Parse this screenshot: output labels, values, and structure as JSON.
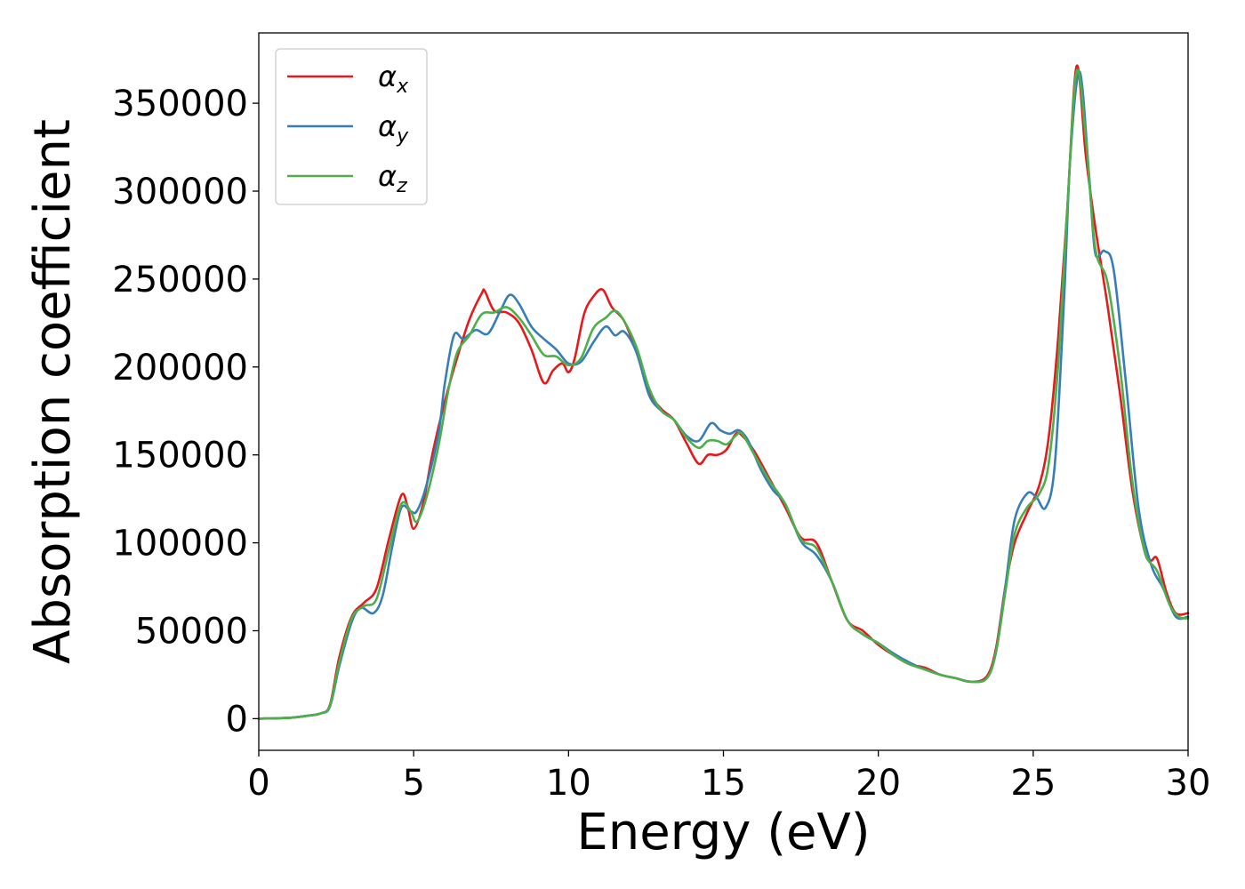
{
  "chart_data": {
    "type": "line",
    "title": "",
    "xlabel": "Energy (eV)",
    "ylabel": "Absorption coefficient",
    "xlim": [
      0,
      30
    ],
    "ylim": [
      -18000,
      390000
    ],
    "xticks": [
      0,
      5,
      10,
      15,
      20,
      25,
      30
    ],
    "xtick_labels": [
      "0",
      "5",
      "10",
      "15",
      "20",
      "25",
      "30"
    ],
    "yticks": [
      0,
      50000,
      100000,
      150000,
      200000,
      250000,
      300000,
      350000
    ],
    "ytick_labels": [
      "0",
      "50000",
      "100000",
      "150000",
      "200000",
      "250000",
      "300000",
      "350000"
    ],
    "grid": false,
    "legend_position": "top-left",
    "series": [
      {
        "name": "α",
        "subscript": "x",
        "color": "#e41a1c",
        "x": [
          0,
          1,
          1.5,
          2,
          2.3,
          2.6,
          3.0,
          3.4,
          3.8,
          4.2,
          4.6,
          4.8,
          5.0,
          5.3,
          5.6,
          6.0,
          6.4,
          6.8,
          7.2,
          7.3,
          7.6,
          8.0,
          8.4,
          8.8,
          9.2,
          9.5,
          9.8,
          10.0,
          10.2,
          10.5,
          10.8,
          11.1,
          11.4,
          11.8,
          12.2,
          12.6,
          13.0,
          13.4,
          13.8,
          14.2,
          14.5,
          14.8,
          15.1,
          15.4,
          15.6,
          16.0,
          16.5,
          17.0,
          17.5,
          18.0,
          18.5,
          19.0,
          19.5,
          20.0,
          20.5,
          21.0,
          21.5,
          22.0,
          22.5,
          23.0,
          23.5,
          23.8,
          24.1,
          24.4,
          24.8,
          25.2,
          25.5,
          25.8,
          26.1,
          26.4,
          26.7,
          27.0,
          27.4,
          27.8,
          28.2,
          28.6,
          28.8,
          29.0,
          29.3,
          29.6,
          30.0
        ],
        "y": [
          0,
          500,
          1500,
          3000,
          8000,
          35000,
          58000,
          66000,
          74000,
          102000,
          127000,
          121000,
          108000,
          122000,
          150000,
          180000,
          205000,
          227000,
          242000,
          243000,
          232000,
          231000,
          225000,
          210000,
          191000,
          198000,
          202000,
          197000,
          205000,
          230000,
          240000,
          244000,
          234000,
          226000,
          208000,
          186000,
          176000,
          170000,
          157000,
          145000,
          150000,
          150000,
          153000,
          162000,
          161000,
          152000,
          136000,
          120000,
          103000,
          100000,
          78000,
          56000,
          50000,
          42000,
          36000,
          31000,
          29000,
          25000,
          23000,
          21000,
          24000,
          40000,
          75000,
          100000,
          117000,
          133000,
          160000,
          215000,
          290000,
          371000,
          320000,
          280000,
          235000,
          185000,
          130000,
          95000,
          90000,
          91000,
          72000,
          60000,
          60000
        ]
      },
      {
        "name": "α",
        "subscript": "y",
        "color": "#377eb8",
        "x": [
          0,
          1,
          1.5,
          2,
          2.3,
          2.6,
          3.0,
          3.3,
          3.7,
          4.0,
          4.3,
          4.6,
          4.9,
          5.1,
          5.4,
          5.8,
          6.0,
          6.3,
          6.6,
          7.0,
          7.4,
          7.8,
          8.1,
          8.4,
          8.8,
          9.2,
          9.6,
          10.0,
          10.4,
          10.8,
          11.2,
          11.5,
          11.8,
          12.2,
          12.6,
          13.0,
          13.4,
          13.8,
          14.2,
          14.6,
          14.9,
          15.2,
          15.5,
          15.8,
          16.2,
          16.6,
          17.0,
          17.5,
          18.0,
          18.5,
          19.0,
          19.5,
          20.0,
          20.5,
          21.0,
          21.5,
          22.0,
          22.5,
          23.0,
          23.5,
          23.8,
          24.1,
          24.4,
          24.8,
          25.1,
          25.4,
          25.7,
          26.0,
          26.2,
          26.5,
          26.8,
          27.0,
          27.3,
          27.6,
          28.0,
          28.4,
          28.8,
          29.2,
          29.6,
          30.0
        ],
        "y": [
          0,
          500,
          1500,
          3000,
          7000,
          30000,
          55000,
          63000,
          60000,
          70000,
          97000,
          120000,
          118000,
          118000,
          132000,
          162000,
          190000,
          218000,
          216000,
          221000,
          219000,
          232000,
          241000,
          236000,
          223000,
          216000,
          210000,
          202000,
          203000,
          214000,
          223000,
          218000,
          220000,
          208000,
          184000,
          175000,
          170000,
          161000,
          158000,
          168000,
          164000,
          162000,
          164000,
          158000,
          142000,
          130000,
          122000,
          101000,
          93000,
          78000,
          56000,
          48000,
          43000,
          37000,
          32000,
          28000,
          25000,
          23000,
          21000,
          23000,
          38000,
          75000,
          113000,
          128000,
          126000,
          120000,
          145000,
          240000,
          320000,
          368000,
          310000,
          265000,
          266000,
          255000,
          190000,
          120000,
          88000,
          74000,
          58000,
          58000
        ]
      },
      {
        "name": "α",
        "subscript": "z",
        "color": "#4daf4a",
        "x": [
          0,
          1,
          1.5,
          2,
          2.3,
          2.6,
          3.0,
          3.4,
          3.8,
          4.2,
          4.6,
          4.9,
          5.1,
          5.4,
          5.8,
          6.1,
          6.4,
          6.8,
          7.2,
          7.6,
          8.0,
          8.4,
          8.8,
          9.2,
          9.6,
          10.0,
          10.4,
          10.8,
          11.2,
          11.5,
          11.8,
          12.2,
          12.6,
          13.0,
          13.4,
          13.8,
          14.2,
          14.5,
          14.8,
          15.1,
          15.4,
          15.6,
          16.0,
          16.5,
          17.0,
          17.5,
          18.0,
          18.5,
          19.0,
          19.5,
          20.0,
          20.5,
          21.0,
          21.5,
          22.0,
          22.5,
          23.0,
          23.5,
          23.8,
          24.1,
          24.4,
          24.8,
          25.2,
          25.5,
          25.8,
          26.1,
          26.4,
          26.7,
          27.0,
          27.4,
          27.8,
          28.2,
          28.6,
          29.0,
          29.4,
          29.7,
          30.0
        ],
        "y": [
          0,
          500,
          1500,
          3000,
          7500,
          32000,
          57000,
          64000,
          68000,
          96000,
          122000,
          118000,
          112000,
          125000,
          155000,
          185000,
          208000,
          218000,
          230000,
          231000,
          234000,
          228000,
          218000,
          207000,
          206000,
          201000,
          205000,
          222000,
          228000,
          232000,
          226000,
          211000,
          188000,
          175000,
          170000,
          160000,
          154000,
          158000,
          158000,
          156000,
          161000,
          162000,
          150000,
          135000,
          122000,
          102000,
          97000,
          78000,
          56000,
          48000,
          43000,
          36000,
          31000,
          28000,
          25000,
          23000,
          21000,
          23000,
          38000,
          72000,
          105000,
          120000,
          128000,
          145000,
          200000,
          290000,
          368000,
          330000,
          268000,
          248000,
          200000,
          135000,
          95000,
          84000,
          65000,
          58000,
          57000
        ]
      }
    ]
  }
}
